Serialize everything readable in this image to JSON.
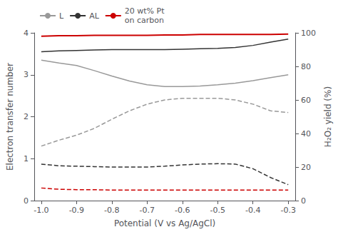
{
  "chart_data": {
    "type": "line",
    "x": [
      -1.0,
      -0.95,
      -0.9,
      -0.85,
      -0.8,
      -0.75,
      -0.7,
      -0.65,
      -0.6,
      -0.55,
      -0.5,
      -0.45,
      -0.4,
      -0.35,
      -0.3
    ],
    "xlabel": "Potential (V vs Ag/AgCl)",
    "ylabel": "Electron transfer number",
    "y2label": "H₂O₂ yield (%)",
    "xlim": [
      -1.02,
      -0.28
    ],
    "xticks": [
      {
        "value": -1.0,
        "label": "-1.0"
      },
      -0.9,
      -0.8,
      -0.7,
      -0.6,
      -0.5,
      -0.4,
      -0.3
    ],
    "ylim": [
      0,
      4
    ],
    "yticks": [
      0,
      1,
      2,
      3,
      4
    ],
    "y2lim": [
      0,
      100
    ],
    "y2ticks": [
      0,
      20,
      40,
      60,
      80,
      100
    ],
    "grid": false,
    "legend": "upper left",
    "series": [
      {
        "name": "L",
        "color": "#999999",
        "line_style": "solid",
        "values": [
          3.35,
          3.28,
          3.22,
          3.1,
          2.97,
          2.85,
          2.76,
          2.72,
          2.72,
          2.73,
          2.76,
          2.8,
          2.86,
          2.93,
          3.0
        ]
      },
      {
        "name": "AL",
        "color": "#333333",
        "line_style": "solid",
        "values": [
          3.55,
          3.57,
          3.58,
          3.59,
          3.6,
          3.6,
          3.6,
          3.6,
          3.61,
          3.62,
          3.63,
          3.65,
          3.7,
          3.78,
          3.85
        ]
      },
      {
        "name": "20 wt% Pt\non carbon",
        "color": "#cc0000",
        "line_style": "solid",
        "values": [
          3.92,
          3.93,
          3.93,
          3.94,
          3.94,
          3.94,
          3.94,
          3.95,
          3.95,
          3.96,
          3.96,
          3.96,
          3.96,
          3.96,
          3.97
        ]
      },
      {
        "color": "#999999",
        "line_style": "dashed",
        "axis": "y2",
        "values": [
          32.5,
          36.0,
          39.0,
          43.0,
          48.5,
          53.5,
          57.5,
          60.0,
          61.0,
          61.0,
          61.0,
          60.0,
          57.5,
          53.5,
          52.5
        ]
      },
      {
        "color": "#333333",
        "line_style": "dashed",
        "axis": "y2",
        "values": [
          21.75,
          20.75,
          20.5,
          20.25,
          20.0,
          20.0,
          20.0,
          20.5,
          21.25,
          21.75,
          22.0,
          21.75,
          19.0,
          13.75,
          9.5
        ]
      },
      {
        "color": "#cc0000",
        "line_style": "dashed",
        "axis": "y2",
        "values": [
          7.5,
          6.75,
          6.5,
          6.5,
          6.25,
          6.25,
          6.25,
          6.25,
          6.25,
          6.25,
          6.25,
          6.25,
          6.25,
          6.25,
          6.25
        ]
      }
    ]
  }
}
